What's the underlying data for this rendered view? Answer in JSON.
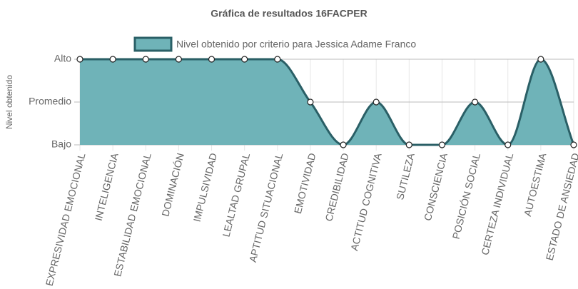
{
  "chart_data": {
    "type": "area",
    "title": "Gráfica de resultados 16FACPER",
    "y_label": "Nivel obtenido",
    "categories": [
      "EXPRESIVIDAD EMOCIONAL",
      "INTELIGENCIA",
      "ESTABILIDAD EMOCIONAL",
      "DOMINACIÓN",
      "IMPULSIVIDAD",
      "LEALTAD GRUPAL",
      "APTITUD SITUACIONAL",
      "EMOTIVIDAD",
      "CREDIBILIDAD",
      "ACTITUD COGNITIVA",
      "SUTILEZA",
      "CONSCIENCIA",
      "POSICIÓN SOCIAL",
      "CERTEZA INDIVIDUAL",
      "AUTOESTIMA",
      "ESTADO DE ANSIEDAD"
    ],
    "series": [
      {
        "name": "Nivel obtenido por criterio para Jessica Adame Franco",
        "color": "#6fb3b8",
        "line_color": "#2a5f66",
        "values": [
          2,
          2,
          2,
          2,
          2,
          2,
          2,
          1,
          0,
          1,
          0,
          0,
          1,
          0,
          2,
          0
        ]
      }
    ],
    "ylim": [
      0,
      2
    ],
    "yticks": [
      {
        "value": 0,
        "label": "Bajo"
      },
      {
        "value": 1,
        "label": "Promedio"
      },
      {
        "value": 2,
        "label": "Alto"
      }
    ],
    "grid": true
  }
}
